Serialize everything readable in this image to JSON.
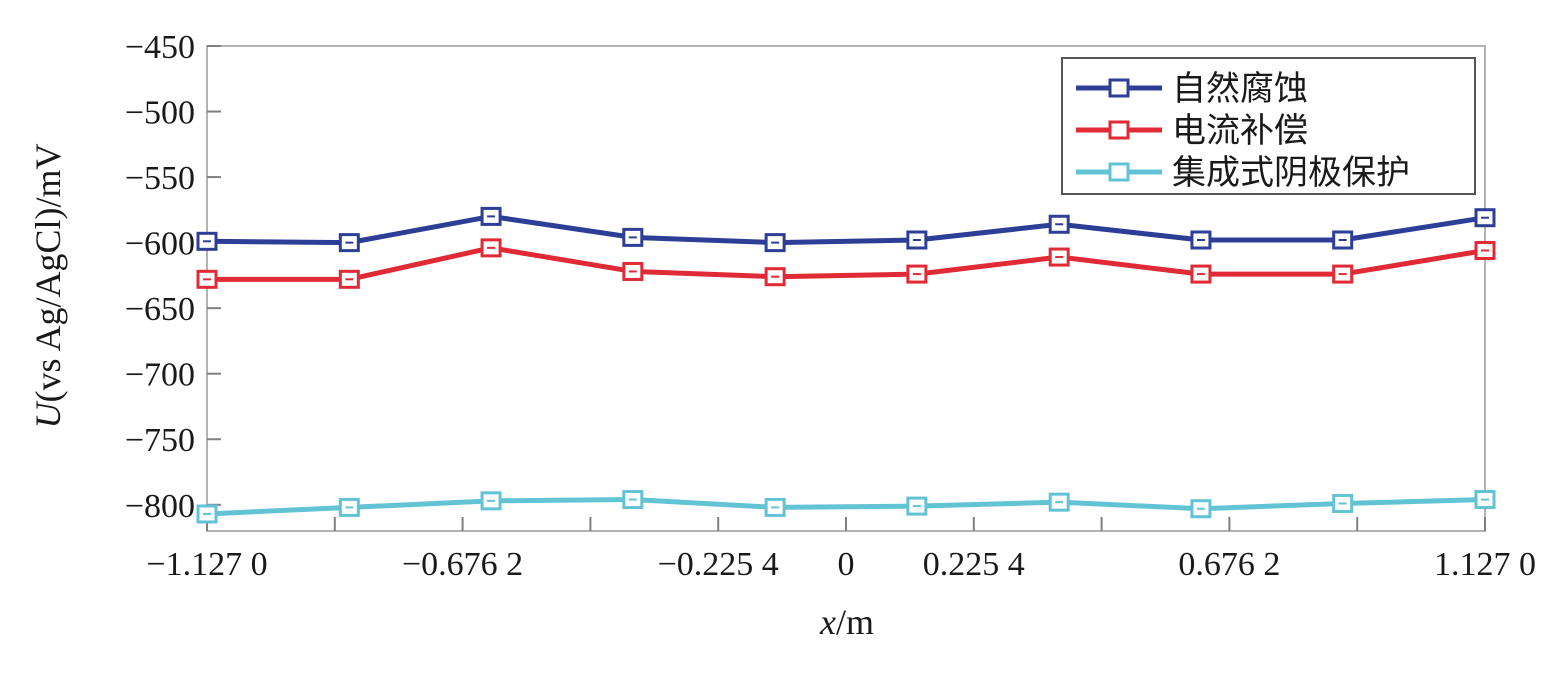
{
  "chart_data": {
    "type": "line",
    "title": "",
    "xlabel_var": "x",
    "xlabel_unit": "/m",
    "ylabel_var": "U",
    "ylabel_rest": "(vs Ag/AgCl)/mV",
    "xlim": [
      -1.127,
      1.127
    ],
    "ylim": [
      -820,
      -450
    ],
    "x_ticks": [
      -1.127,
      -0.6762,
      -0.2254,
      0,
      0.2254,
      0.6762,
      1.127
    ],
    "x_tick_labels": [
      "−1.127 0",
      "−0.676 2",
      "−0.225 4",
      "0",
      "0.225 4",
      "0.676 2",
      "1.127 0"
    ],
    "x_minor_ticks": [
      -0.9016,
      -0.4508,
      0.4508,
      0.9016
    ],
    "y_ticks": [
      -450,
      -500,
      -550,
      -600,
      -650,
      -700,
      -750,
      -800
    ],
    "y_tick_labels": [
      "−450",
      "−500",
      "−550",
      "−600",
      "−650",
      "−700",
      "−750",
      "−800"
    ],
    "grid": false,
    "legend_position": "top-right",
    "x": [
      -1.127,
      -0.876,
      -0.626,
      -0.376,
      -0.125,
      0.125,
      0.376,
      0.626,
      0.876,
      1.127
    ],
    "series": [
      {
        "name": "自然腐蚀",
        "color": "#2d3e96",
        "values": [
          -599,
          -600,
          -580,
          -596,
          -600,
          -598,
          -586,
          -598,
          -598,
          -581
        ]
      },
      {
        "name": "电流补偿",
        "color": "#e02a35",
        "values": [
          -628,
          -628,
          -604,
          -622,
          -626,
          -624,
          -611,
          -624,
          -624,
          -606
        ]
      },
      {
        "name": "集成式阴极保护",
        "color": "#62c3d4",
        "values": [
          -807,
          -802,
          -797,
          -796,
          -802,
          -801,
          -798,
          -803,
          -799,
          -796
        ]
      }
    ]
  }
}
